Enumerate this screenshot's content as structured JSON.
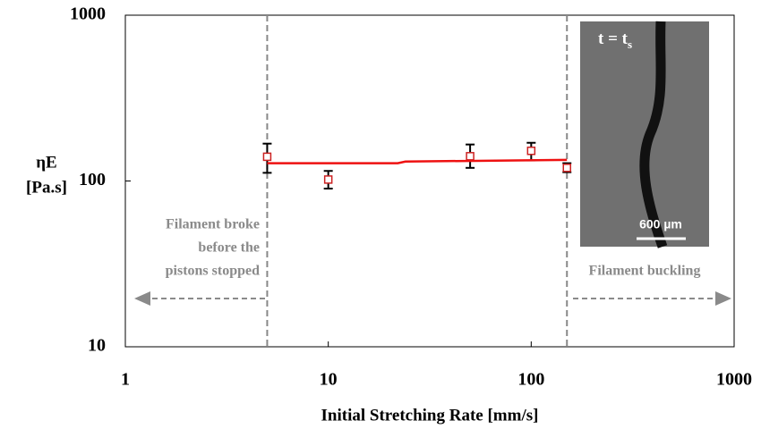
{
  "chart_data": {
    "type": "scatter",
    "xlabel": "Initial Stretching Rate [mm/s]",
    "ylabel_lines": [
      "ηE",
      "[Pa.s]"
    ],
    "xscale": "log",
    "yscale": "log",
    "xlim": [
      1,
      1000
    ],
    "ylim": [
      10,
      1000
    ],
    "xticks": [
      1,
      10,
      100,
      1000
    ],
    "yticks": [
      10,
      100,
      1000
    ],
    "grid": false,
    "series": [
      {
        "color": "#cc2222",
        "x": [
          5,
          10,
          50,
          100,
          150
        ],
        "values": [
          140,
          102,
          141,
          152,
          120
        ],
        "error_plus": [
          28,
          13,
          25,
          18,
          8
        ],
        "error_minus": [
          28,
          12,
          21,
          19,
          7
        ]
      },
      {
        "type": "line",
        "color": "#ee1111",
        "x": [
          5,
          22,
          24,
          150
        ],
        "values": [
          128,
          128,
          131,
          134
        ]
      }
    ],
    "vlines": [
      5,
      150
    ],
    "annotations": {
      "left_lines": [
        "Filament broke",
        "before the",
        "pistons stopped"
      ],
      "right": "Filament buckling"
    },
    "inset": {
      "label": "t = t",
      "label_sub": "s",
      "scale": "600 µm"
    }
  }
}
